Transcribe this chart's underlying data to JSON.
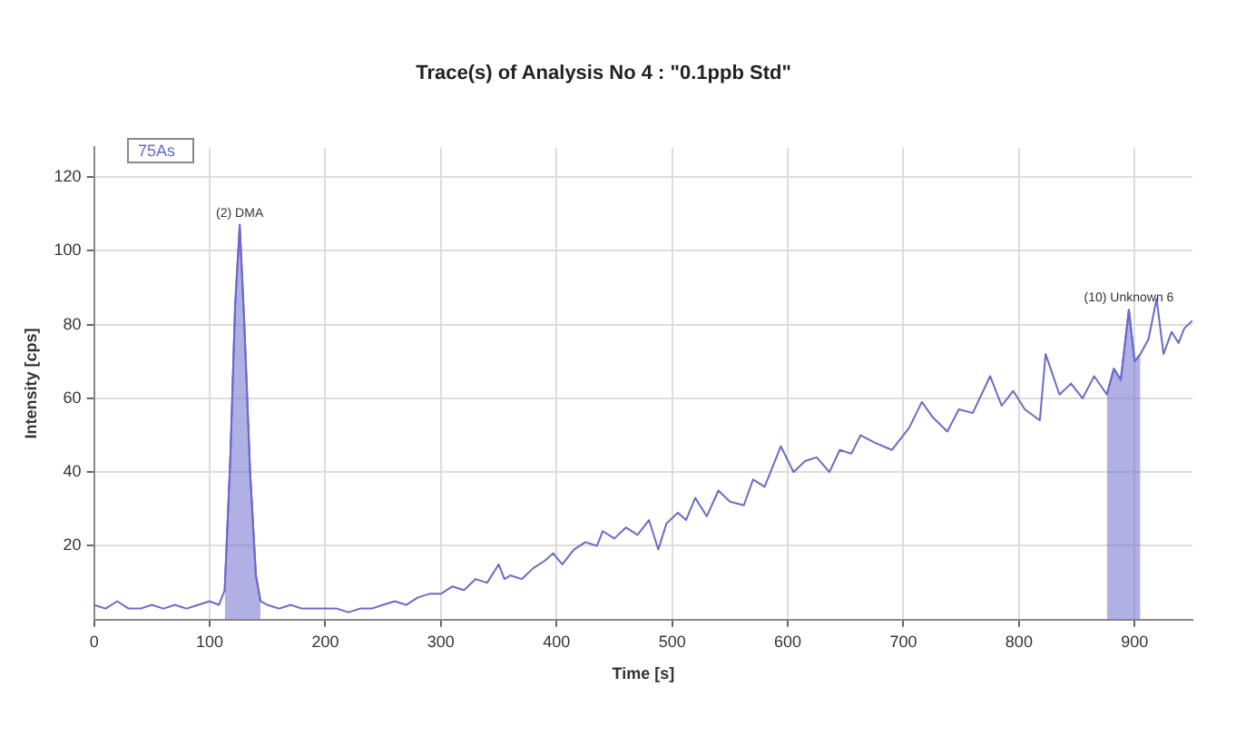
{
  "chart_data": {
    "type": "line",
    "title": "Trace(s) of Analysis No 4 : \"0.1ppb Std\"",
    "xlabel": "Time [s]",
    "ylabel": "Intensity [cps]",
    "xlim": [
      0,
      950
    ],
    "xticks": [
      0,
      100,
      200,
      300,
      400,
      500,
      600,
      700,
      800,
      900
    ],
    "ylim": [
      0,
      128
    ],
    "yticks": [
      20,
      40,
      60,
      80,
      100,
      120
    ],
    "grid": true,
    "legend": "top left",
    "marker": "none",
    "annotations": [
      {
        "text": "(2) DMA",
        "x": 126,
        "y": 107
      },
      {
        "text": "(10) Unknown 6",
        "x": 895,
        "y": 84
      }
    ],
    "series": [
      {
        "name": "75As",
        "color": "#6a6acc",
        "x": [
          0,
          10,
          20,
          30,
          40,
          50,
          60,
          70,
          80,
          90,
          100,
          108,
          113,
          118,
          122,
          126,
          130,
          135,
          140,
          144,
          150,
          160,
          170,
          180,
          190,
          200,
          210,
          220,
          230,
          240,
          250,
          260,
          270,
          280,
          290,
          300,
          310,
          320,
          330,
          340,
          350,
          355,
          360,
          370,
          380,
          390,
          397,
          405,
          415,
          425,
          435,
          440,
          450,
          460,
          470,
          480,
          488,
          495,
          505,
          512,
          520,
          530,
          540,
          550,
          562,
          570,
          580,
          594,
          605,
          615,
          625,
          636,
          645,
          655,
          663,
          675,
          690,
          705,
          716,
          725,
          738,
          748,
          760,
          775,
          785,
          795,
          805,
          818,
          823,
          835,
          845,
          855,
          865,
          876,
          882,
          888,
          895,
          900,
          905,
          912,
          919,
          925,
          932,
          938,
          943,
          950
        ],
        "values": [
          4,
          3,
          5,
          3,
          3,
          4,
          3,
          4,
          3,
          4,
          5,
          4,
          8,
          45,
          85,
          107,
          80,
          40,
          12,
          5,
          4,
          3,
          4,
          3,
          3,
          3,
          3,
          2,
          3,
          3,
          4,
          5,
          4,
          6,
          7,
          7,
          9,
          8,
          11,
          10,
          15,
          11,
          12,
          11,
          14,
          16,
          18,
          15,
          19,
          21,
          20,
          24,
          22,
          25,
          23,
          27,
          19,
          26,
          29,
          27,
          33,
          28,
          35,
          32,
          31,
          38,
          36,
          47,
          40,
          43,
          44,
          40,
          46,
          45,
          50,
          48,
          46,
          52,
          59,
          55,
          51,
          57,
          56,
          66,
          58,
          62,
          57,
          54,
          72,
          61,
          64,
          60,
          66,
          61,
          68,
          65,
          84,
          70,
          72,
          76,
          87,
          72,
          78,
          75,
          79,
          81
        ]
      },
      {
        "type": "area",
        "color": "#6a6acc",
        "x": [
          113,
          118,
          122,
          126,
          130,
          135,
          140,
          144
        ],
        "values": [
          8,
          45,
          85,
          107,
          80,
          40,
          12,
          5
        ]
      },
      {
        "type": "area",
        "color": "#6a6acc",
        "x": [
          876,
          882,
          888,
          895,
          900,
          905
        ],
        "values": [
          61,
          68,
          65,
          84,
          70,
          72
        ]
      }
    ]
  }
}
